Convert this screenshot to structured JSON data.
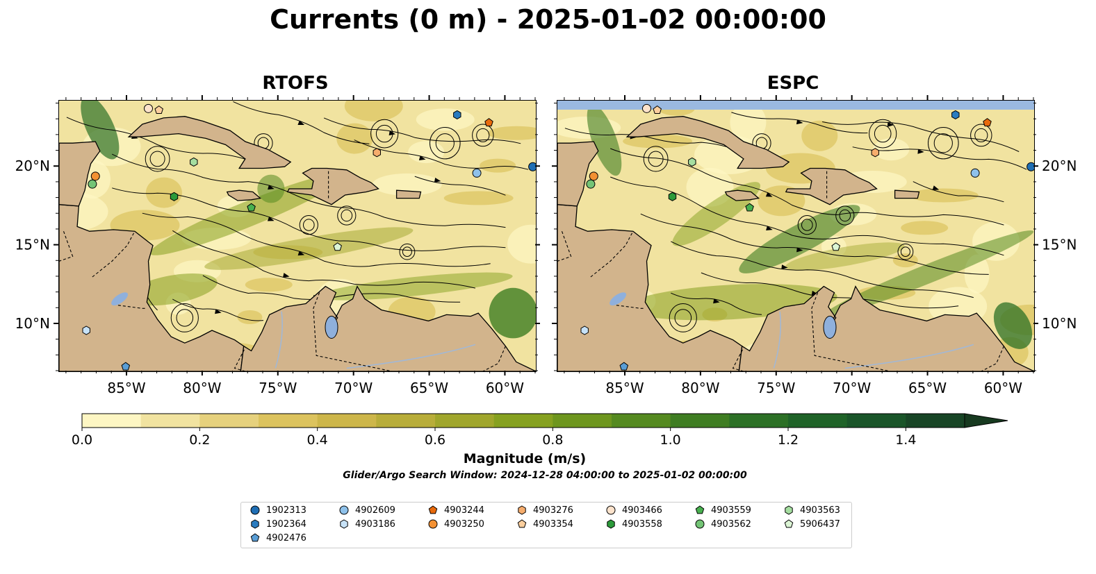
{
  "title": "Currents (0 m) - 2025-01-02 00:00:00",
  "panels": [
    {
      "title": "RTOFS"
    },
    {
      "title": "ESPC"
    }
  ],
  "axes": {
    "lon_labels": [
      "85°W",
      "80°W",
      "75°W",
      "70°W",
      "65°W",
      "60°W"
    ],
    "lon_values": [
      -85,
      -80,
      -75,
      -70,
      -65,
      -60
    ],
    "lat_labels": [
      "10°N",
      "15°N",
      "20°N"
    ],
    "lat_values": [
      10,
      15,
      20
    ],
    "lon_range": [
      -89.5,
      -58
    ],
    "lat_range": [
      7,
      24.2
    ]
  },
  "colorbar": {
    "label": "Magnitude (m/s)",
    "tick_labels": [
      "0.0",
      "0.2",
      "0.4",
      "0.6",
      "0.8",
      "1.0",
      "1.2",
      "1.4"
    ],
    "ticks": [
      0.0,
      0.2,
      0.4,
      0.6,
      0.8,
      1.0,
      1.2,
      1.4
    ],
    "range": [
      0,
      1.5
    ],
    "extend": "max",
    "colors": [
      "#fdf6c3",
      "#f1e3a0",
      "#e6d17d",
      "#dcc35e",
      "#cdb64a",
      "#b8ad3a",
      "#a0a62c",
      "#86a120",
      "#6e961e",
      "#558a20",
      "#3f7d22",
      "#2c7026",
      "#1f6328",
      "#1a5529",
      "#184526",
      "#173a20"
    ]
  },
  "search_window": "Glider/Argo Search Window: 2024-12-28 04:00:00 to 2025-01-02 00:00:00",
  "colors": {
    "land": "#d2b48c",
    "ocean_no_data": "#9ab9e0",
    "lake": "#8fb0dc",
    "river": "#a0b8d8"
  },
  "legend": [
    {
      "id": "1902313",
      "marker": "circle",
      "color": "#1f6eb4"
    },
    {
      "id": "1902364",
      "marker": "hexagon",
      "color": "#2a7cc0"
    },
    {
      "id": "4902476",
      "marker": "pentagon",
      "color": "#5a9ed6"
    },
    {
      "id": "4902609",
      "marker": "circle",
      "color": "#8ec1ea"
    },
    {
      "id": "4903186",
      "marker": "hexagon",
      "color": "#c7e2f7"
    },
    {
      "id": "4903244",
      "marker": "pentagon",
      "color": "#e86a0c"
    },
    {
      "id": "4903250",
      "marker": "circle",
      "color": "#f39133"
    },
    {
      "id": "4903276",
      "marker": "hexagon",
      "color": "#f6ad6d"
    },
    {
      "id": "4903354",
      "marker": "pentagon",
      "color": "#fbcf9e"
    },
    {
      "id": "4903466",
      "marker": "circle",
      "color": "#fde3cc"
    },
    {
      "id": "4903558",
      "marker": "hexagon",
      "color": "#2c9a3a"
    },
    {
      "id": "4903559",
      "marker": "pentagon",
      "color": "#48b04f"
    },
    {
      "id": "4903562",
      "marker": "circle",
      "color": "#74c476"
    },
    {
      "id": "4903563",
      "marker": "hexagon",
      "color": "#a5dea0"
    },
    {
      "id": "5906437",
      "marker": "pentagon",
      "color": "#dcf5d5"
    }
  ],
  "floats": [
    {
      "id": "1902313",
      "lon": -58.2,
      "lat": 20.0
    },
    {
      "id": "1902364",
      "lon": -63.2,
      "lat": 23.3
    },
    {
      "id": "4902476",
      "lon": -85.1,
      "lat": 7.3
    },
    {
      "id": "4902609",
      "lon": -61.9,
      "lat": 19.6
    },
    {
      "id": "4903186",
      "lon": -87.7,
      "lat": 9.6
    },
    {
      "id": "4903244",
      "lon": -61.1,
      "lat": 22.8
    },
    {
      "id": "4903250",
      "lon": -87.1,
      "lat": 19.4
    },
    {
      "id": "4903276",
      "lon": -68.5,
      "lat": 20.9
    },
    {
      "id": "4903354",
      "lon": -82.9,
      "lat": 23.6
    },
    {
      "id": "4903466",
      "lon": -83.6,
      "lat": 23.7
    },
    {
      "id": "4903558",
      "lon": -81.9,
      "lat": 18.1
    },
    {
      "id": "4903559",
      "lon": -76.8,
      "lat": 17.4
    },
    {
      "id": "4903562",
      "lon": -87.3,
      "lat": 18.9
    },
    {
      "id": "4903563",
      "lon": -80.6,
      "lat": 20.3
    },
    {
      "id": "5906437",
      "lon": -71.1,
      "lat": 14.9
    }
  ]
}
